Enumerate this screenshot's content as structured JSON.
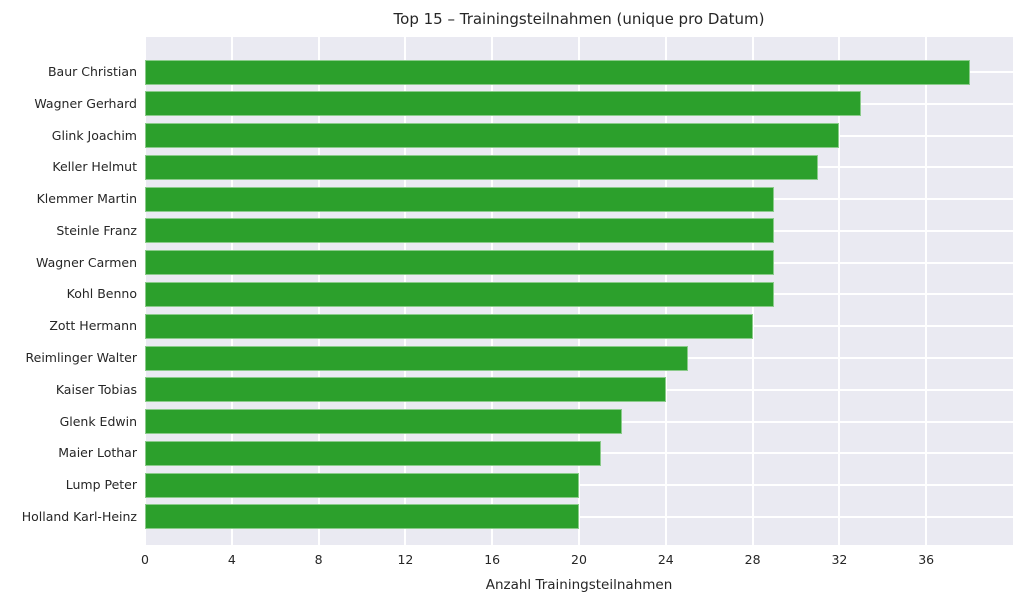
{
  "chart_data": {
    "type": "bar",
    "orientation": "horizontal",
    "title": "Top 15 – Trainingsteilnahmen (unique pro Datum)",
    "xlabel": "Anzahl Trainingsteilnahmen",
    "ylabel": "",
    "categories": [
      "Baur Christian",
      "Wagner Gerhard",
      "Glink Joachim",
      "Keller Helmut",
      "Klemmer Martin",
      "Steinle Franz",
      "Wagner Carmen",
      "Kohl Benno",
      "Zott Hermann",
      "Reimlinger Walter",
      "Kaiser Tobias",
      "Glenk Edwin",
      "Maier Lothar",
      "Lump Peter",
      "Holland Karl-Heinz"
    ],
    "values": [
      38,
      33,
      32,
      31,
      29,
      29,
      29,
      29,
      28,
      25,
      24,
      22,
      21,
      20,
      20
    ],
    "xticks": [
      0,
      4,
      8,
      12,
      16,
      20,
      24,
      28,
      32,
      36
    ],
    "xlim": [
      0,
      40
    ],
    "grid": true,
    "legend": false,
    "colors": {
      "bar": "#2ca02c",
      "plot_background": "#eaeaf2",
      "figure_background": "#ffffff",
      "gridline": "#ffffff",
      "text": "#262626"
    }
  }
}
